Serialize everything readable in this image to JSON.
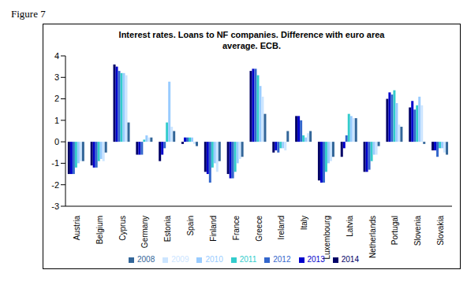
{
  "caption": "Figure 7",
  "chart_data": {
    "type": "bar",
    "title": "Interest rates. Loans to NF companies. Difference with euro area average. ECB.",
    "categories": [
      "Austria",
      "Belgium",
      "Cyprus",
      "Germany",
      "Estonia",
      "Spain",
      "Finland",
      "France",
      "Greece",
      "Ireland",
      "Italy",
      "Luxembourg",
      "Latvia",
      "Netherlands",
      "Portugal",
      "Slovenia",
      "Slovakia"
    ],
    "series": [
      {
        "name": "2014",
        "color": "#000066",
        "values": [
          -1.5,
          -1.1,
          3.6,
          -0.6,
          -0.9,
          -0.1,
          -1.4,
          -1.5,
          3.3,
          -0.5,
          1.2,
          -1.8,
          -0.7,
          -1.4,
          2.0,
          1.6,
          -0.4
        ]
      },
      {
        "name": "2013",
        "color": "#0000CC",
        "values": [
          -1.5,
          -1.2,
          3.5,
          -0.6,
          -0.6,
          0.2,
          -1.5,
          -1.7,
          3.4,
          -0.4,
          1.2,
          -1.9,
          -0.3,
          -1.4,
          2.3,
          1.9,
          -0.4
        ]
      },
      {
        "name": "2012",
        "color": "#3366CC",
        "values": [
          -1.5,
          -1.2,
          3.3,
          -0.6,
          -0.3,
          0.2,
          -1.9,
          -1.7,
          3.4,
          -0.5,
          1.0,
          -1.9,
          0.3,
          -1.3,
          2.2,
          1.5,
          -0.7
        ]
      },
      {
        "name": "2011",
        "color": "#33CCCC",
        "values": [
          -1.2,
          -0.9,
          3.2,
          0.1,
          0.9,
          0.2,
          -1.2,
          -1.4,
          3.1,
          -0.3,
          0.3,
          -1.4,
          1.3,
          -0.9,
          2.4,
          1.7,
          -0.3
        ]
      },
      {
        "name": "2010",
        "color": "#99CCFF",
        "values": [
          -1.0,
          -0.8,
          3.2,
          0.3,
          2.8,
          0.2,
          -1.0,
          -1.0,
          2.6,
          -0.3,
          0.2,
          -1.0,
          1.2,
          -0.6,
          1.8,
          2.1,
          -0.3
        ]
      },
      {
        "name": "2009",
        "color": "#CCE5FF",
        "values": [
          -0.9,
          -0.9,
          3.1,
          0.2,
          0.7,
          -0.1,
          -1.4,
          -0.8,
          2.1,
          -0.4,
          0.4,
          -0.9,
          1.1,
          -0.6,
          0.8,
          1.7,
          -0.5
        ]
      },
      {
        "name": "2008",
        "color": "#336699",
        "values": [
          -0.9,
          -0.5,
          0.9,
          0.2,
          0.5,
          -0.2,
          -0.9,
          -0.7,
          1.3,
          0.5,
          0.5,
          -0.7,
          1.1,
          -0.2,
          0.7,
          -0.1,
          -0.6
        ]
      }
    ],
    "ylim": [
      -3,
      4
    ],
    "yticks": [
      -3,
      -2,
      -1,
      0,
      1,
      2,
      3,
      4
    ],
    "grid": false,
    "legend": "bottom"
  }
}
